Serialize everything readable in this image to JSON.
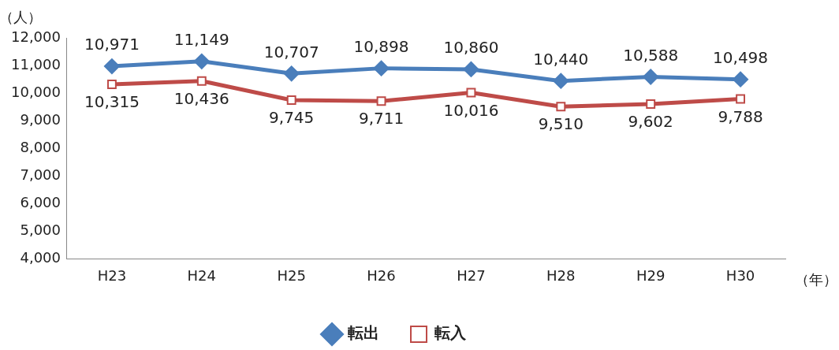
{
  "chart_data": {
    "type": "line",
    "ylabel": "（人）",
    "xlabel": "（年）",
    "categories": [
      "H23",
      "H24",
      "H25",
      "H26",
      "H27",
      "H28",
      "H29",
      "H30"
    ],
    "series": [
      {
        "name": "転出",
        "color": "#4a7ebb",
        "marker": "diamond",
        "values": [
          10971,
          11149,
          10707,
          10898,
          10860,
          10440,
          10588,
          10498
        ],
        "value_labels": [
          "10,971",
          "11,149",
          "10,707",
          "10,898",
          "10,860",
          "10,440",
          "10,588",
          "10,498"
        ]
      },
      {
        "name": "転入",
        "color": "#be4b48",
        "marker": "square",
        "values": [
          10315,
          10436,
          9745,
          9711,
          10016,
          9510,
          9602,
          9788
        ],
        "value_labels": [
          "10,315",
          "10,436",
          "9,745",
          "9,711",
          "10,016",
          "9,510",
          "9,602",
          "9,788"
        ]
      }
    ],
    "ylim": [
      4000,
      12000
    ],
    "yticks": [
      {
        "value": 4000,
        "label": "4,000"
      },
      {
        "value": 5000,
        "label": "5,000"
      },
      {
        "value": 6000,
        "label": "6,000"
      },
      {
        "value": 7000,
        "label": "7,000"
      },
      {
        "value": 8000,
        "label": "8,000"
      },
      {
        "value": 9000,
        "label": "9,000"
      },
      {
        "value": 10000,
        "label": "10,000"
      },
      {
        "value": 11000,
        "label": "11,000"
      },
      {
        "value": 12000,
        "label": "12,000"
      }
    ],
    "grid": false,
    "legend": "bottom",
    "line_style": "solid"
  }
}
